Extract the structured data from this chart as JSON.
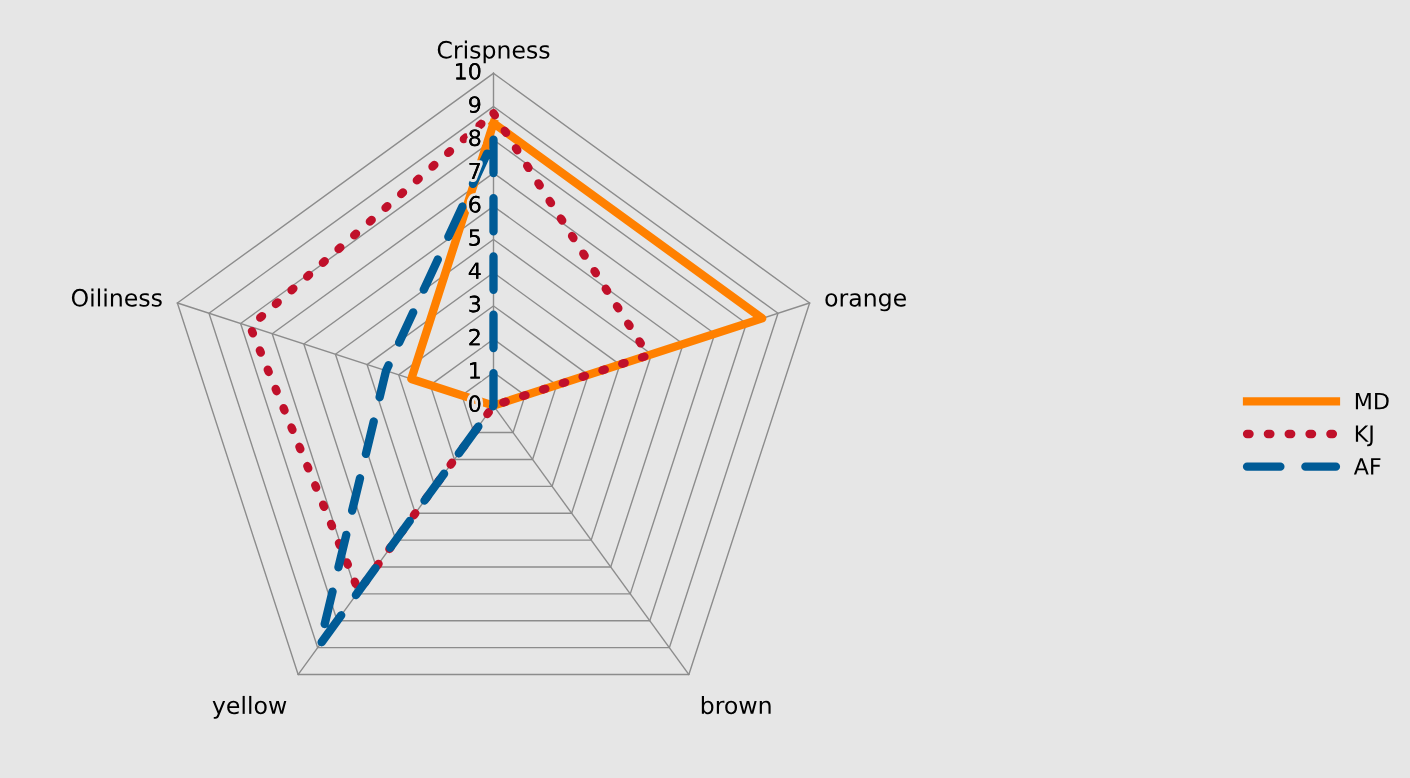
{
  "chart_data": {
    "type": "radar",
    "categories": [
      "Crispness",
      "orange",
      "brown",
      "yellow",
      "Oiliness"
    ],
    "series": [
      {
        "name": "MD",
        "color": "#ff8000",
        "values": [
          8.5,
          8.5,
          0,
          0,
          2.6
        ],
        "line_style": "solid"
      },
      {
        "name": "KJ",
        "color": "#c0102a",
        "values": [
          8.8,
          4.9,
          0,
          6.9,
          7.7
        ],
        "line_style": "dotted"
      },
      {
        "name": "AF",
        "color": "#005b96",
        "values": [
          8,
          0,
          0,
          8.9,
          3.4
        ],
        "line_style": "dashed"
      }
    ],
    "ylim": [
      0,
      10
    ],
    "yticks": [
      0,
      1,
      2,
      3,
      4,
      5,
      6,
      7,
      8,
      9,
      10
    ],
    "grid": true,
    "legend": "right",
    "marker": "none"
  }
}
